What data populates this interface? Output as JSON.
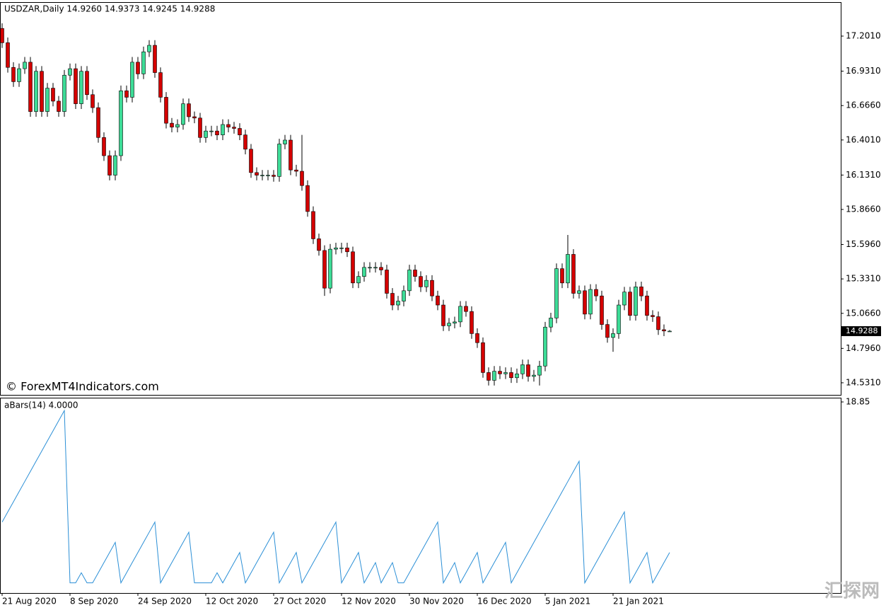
{
  "chart_data": [
    {
      "type": "candlestick",
      "title": "USDZAR,Daily  14.9260 14.9373 14.9245 14.9288",
      "watermark": "© ForexMT4Indicators.com",
      "logo": "汇探网",
      "up_color": "#3ddc97",
      "down_color": "#d40000",
      "categories": [
        "21 Aug 2020",
        null,
        null,
        null,
        null,
        null,
        null,
        null,
        null,
        null,
        null,
        null,
        "8 Sep 2020",
        null,
        null,
        null,
        null,
        null,
        null,
        null,
        null,
        null,
        null,
        null,
        "24 Sep 2020",
        null,
        null,
        null,
        null,
        null,
        null,
        null,
        null,
        null,
        null,
        null,
        "12 Oct 2020",
        null,
        null,
        null,
        null,
        null,
        null,
        null,
        null,
        null,
        null,
        null,
        "27 Oct 2020",
        null,
        null,
        null,
        null,
        null,
        null,
        null,
        null,
        null,
        null,
        null,
        "12 Nov 2020",
        null,
        null,
        null,
        null,
        null,
        null,
        null,
        null,
        null,
        null,
        null,
        "30 Nov 2020",
        null,
        null,
        null,
        null,
        null,
        null,
        null,
        null,
        null,
        null,
        null,
        "16 Dec 2020",
        null,
        null,
        null,
        null,
        null,
        null,
        null,
        null,
        null,
        null,
        null,
        "5 Jan 2021",
        null,
        null,
        null,
        null,
        null,
        null,
        null,
        null,
        null,
        null,
        null,
        "21 Jan 2021",
        null,
        null,
        null,
        null,
        null,
        null,
        null,
        null,
        null,
        null
      ],
      "open": [
        17.26,
        17.15,
        16.96,
        16.85,
        16.95,
        17.0,
        16.62,
        16.93,
        16.62,
        16.8,
        16.7,
        16.62,
        16.9,
        16.95,
        16.68,
        16.93,
        16.75,
        16.65,
        16.42,
        16.28,
        16.13,
        16.28,
        16.78,
        16.73,
        17.0,
        16.91,
        17.08,
        17.13,
        16.92,
        16.73,
        16.53,
        16.5,
        16.52,
        16.68,
        16.58,
        16.57,
        16.42,
        16.47,
        16.47,
        16.44,
        16.52,
        16.5,
        16.49,
        16.44,
        16.33,
        16.15,
        16.13,
        16.13,
        16.13,
        16.12,
        16.37,
        16.4,
        16.17,
        16.16,
        16.05,
        15.85,
        15.64,
        15.55,
        15.26,
        15.56,
        15.57,
        15.57,
        15.54,
        15.3,
        15.35,
        15.42,
        15.42,
        15.42,
        15.4,
        15.22,
        15.13,
        15.16,
        15.24,
        15.4,
        15.35,
        15.27,
        15.32,
        15.2,
        15.13,
        14.97,
        14.99,
        15.0,
        15.12,
        15.08,
        14.91,
        14.84,
        14.61,
        14.55,
        14.62,
        14.6,
        14.61,
        14.57,
        14.6,
        14.67,
        14.58,
        14.59,
        14.66,
        14.96,
        15.03,
        15.41,
        15.3,
        15.52,
        15.22,
        15.24,
        15.06,
        15.25,
        15.2,
        14.98,
        14.88,
        14.91,
        15.13,
        15.23,
        15.05,
        15.27,
        15.2,
        15.05,
        15.04,
        14.94,
        14.926
      ],
      "high": [
        17.3,
        17.19,
        17.0,
        16.99,
        17.04,
        17.04,
        16.97,
        16.97,
        16.84,
        16.84,
        16.74,
        16.94,
        16.99,
        16.99,
        16.97,
        16.97,
        16.79,
        16.69,
        16.46,
        16.32,
        16.32,
        16.82,
        16.82,
        17.04,
        17.04,
        17.12,
        17.17,
        17.17,
        16.96,
        16.77,
        16.57,
        16.56,
        16.72,
        16.72,
        16.62,
        16.61,
        16.51,
        16.51,
        16.51,
        16.56,
        16.56,
        16.54,
        16.53,
        16.48,
        16.37,
        16.19,
        16.17,
        16.17,
        16.17,
        16.41,
        16.44,
        16.44,
        16.21,
        16.44,
        16.09,
        15.89,
        15.68,
        15.59,
        15.6,
        15.61,
        15.61,
        15.61,
        15.58,
        15.39,
        15.46,
        15.46,
        15.46,
        15.46,
        15.44,
        15.26,
        15.2,
        15.28,
        15.44,
        15.44,
        15.39,
        15.36,
        15.36,
        15.24,
        15.17,
        15.03,
        15.04,
        15.16,
        15.16,
        15.12,
        14.95,
        14.88,
        14.65,
        14.66,
        14.66,
        14.65,
        14.65,
        14.64,
        14.71,
        14.71,
        14.63,
        14.7,
        15.0,
        15.07,
        15.45,
        15.45,
        15.67,
        15.56,
        15.28,
        15.28,
        15.29,
        15.29,
        15.24,
        15.02,
        14.95,
        15.17,
        15.27,
        15.27,
        15.31,
        15.31,
        15.24,
        15.09,
        15.08,
        14.98,
        14.9373
      ],
      "low": [
        17.11,
        16.92,
        16.81,
        16.81,
        16.91,
        16.58,
        16.58,
        16.58,
        16.58,
        16.66,
        16.58,
        16.58,
        16.86,
        16.64,
        16.64,
        16.71,
        16.61,
        16.38,
        16.24,
        16.09,
        16.09,
        16.24,
        16.69,
        16.69,
        16.87,
        16.87,
        17.04,
        16.88,
        16.69,
        16.49,
        16.46,
        16.46,
        16.48,
        16.54,
        16.53,
        16.38,
        16.38,
        16.43,
        16.4,
        16.4,
        16.46,
        16.45,
        16.4,
        16.29,
        16.11,
        16.09,
        16.09,
        16.09,
        16.08,
        16.08,
        16.33,
        16.13,
        16.12,
        16.01,
        15.81,
        15.6,
        15.51,
        15.2,
        15.22,
        15.52,
        15.53,
        15.5,
        15.26,
        15.26,
        15.31,
        15.38,
        15.38,
        15.36,
        15.18,
        15.09,
        15.09,
        15.12,
        15.2,
        15.31,
        15.23,
        15.23,
        15.16,
        15.09,
        14.93,
        14.93,
        14.95,
        14.96,
        15.04,
        14.87,
        14.8,
        14.57,
        14.51,
        14.51,
        14.56,
        14.56,
        14.53,
        14.53,
        14.56,
        14.54,
        14.54,
        14.51,
        14.62,
        14.92,
        14.99,
        15.26,
        15.26,
        15.18,
        15.18,
        15.02,
        15.02,
        15.16,
        14.94,
        14.84,
        14.77,
        14.87,
        15.09,
        15.01,
        15.01,
        15.16,
        15.01,
        15.0,
        14.9,
        14.89,
        14.9245
      ],
      "close": [
        17.15,
        16.96,
        16.85,
        16.95,
        17.0,
        16.62,
        16.93,
        16.62,
        16.8,
        16.7,
        16.62,
        16.9,
        16.95,
        16.68,
        16.93,
        16.75,
        16.65,
        16.42,
        16.28,
        16.13,
        16.28,
        16.78,
        16.73,
        17.0,
        16.91,
        17.08,
        17.13,
        16.92,
        16.73,
        16.53,
        16.5,
        16.52,
        16.68,
        16.58,
        16.57,
        16.42,
        16.47,
        16.47,
        16.44,
        16.52,
        16.5,
        16.49,
        16.44,
        16.33,
        16.15,
        16.13,
        16.13,
        16.13,
        16.12,
        16.37,
        16.4,
        16.17,
        16.16,
        16.05,
        15.85,
        15.64,
        15.55,
        15.26,
        15.56,
        15.57,
        15.57,
        15.54,
        15.3,
        15.35,
        15.42,
        15.42,
        15.42,
        15.4,
        15.22,
        15.13,
        15.16,
        15.24,
        15.4,
        15.35,
        15.27,
        15.32,
        15.2,
        15.13,
        14.97,
        14.99,
        15.0,
        15.12,
        15.08,
        14.91,
        14.84,
        14.61,
        14.55,
        14.62,
        14.6,
        14.61,
        14.57,
        14.6,
        14.67,
        14.58,
        14.59,
        14.66,
        14.96,
        15.03,
        15.41,
        15.3,
        15.52,
        15.22,
        15.24,
        15.06,
        15.25,
        15.2,
        14.98,
        14.88,
        14.91,
        15.13,
        15.23,
        15.05,
        15.27,
        15.2,
        15.05,
        15.04,
        14.94,
        14.93,
        14.9288
      ],
      "ylim": [
        14.438,
        17.479
      ],
      "yticks": [
        {
          "value": 17.201,
          "label": "17.2010"
        },
        {
          "value": 16.931,
          "label": "16.9310"
        },
        {
          "value": 16.666,
          "label": "16.6660"
        },
        {
          "value": 16.401,
          "label": "16.4010"
        },
        {
          "value": 16.131,
          "label": "16.1310"
        },
        {
          "value": 15.866,
          "label": "15.8660"
        },
        {
          "value": 15.596,
          "label": "15.5960"
        },
        {
          "value": 15.331,
          "label": "15.3310"
        },
        {
          "value": 15.066,
          "label": "15.0660"
        },
        {
          "value": 14.796,
          "label": "14.7960"
        },
        {
          "value": 14.531,
          "label": "14.5310"
        }
      ]
    },
    {
      "type": "line",
      "title": "aBars(14) 4.0000",
      "color": "#2b8fd6",
      "values": [
        7,
        8,
        9,
        10,
        11,
        12,
        13,
        14,
        15,
        16,
        17,
        18,
        1,
        1,
        2,
        1,
        1,
        2,
        3,
        4,
        5,
        1,
        2,
        3,
        4,
        5,
        6,
        7,
        1,
        2,
        3,
        4,
        5,
        6,
        1,
        1,
        1,
        1,
        2,
        1,
        2,
        3,
        4,
        1,
        2,
        3,
        4,
        5,
        6,
        1,
        2,
        3,
        4,
        1,
        2,
        3,
        4,
        5,
        6,
        7,
        1,
        2,
        3,
        4,
        1,
        2,
        3,
        1,
        2,
        3,
        1,
        1,
        2,
        3,
        4,
        5,
        6,
        7,
        1,
        2,
        3,
        1,
        2,
        3,
        4,
        1,
        2,
        3,
        4,
        5,
        1,
        2,
        3,
        4,
        5,
        6,
        7,
        8,
        9,
        10,
        11,
        12,
        13,
        1,
        2,
        3,
        4,
        5,
        6,
        7,
        8,
        1,
        2,
        3,
        4,
        1,
        2,
        3,
        4
      ],
      "ylim": [
        0,
        18.85
      ],
      "yticks": [
        18.85
      ]
    }
  ]
}
